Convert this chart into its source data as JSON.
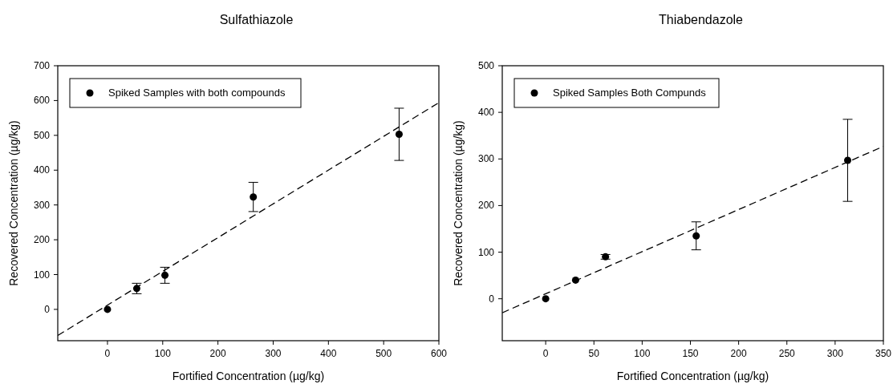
{
  "chart_data": [
    {
      "type": "scatter",
      "title": "Sulfathiazole",
      "xlabel": "Fortified Concentration (µg/kg)",
      "ylabel": "Recovered Concentration (µg/kg)",
      "xlim": [
        -90,
        600
      ],
      "ylim": [
        -90,
        700
      ],
      "xticks": [
        0,
        100,
        200,
        300,
        400,
        500,
        600
      ],
      "yticks": [
        0,
        100,
        200,
        300,
        400,
        500,
        600,
        700
      ],
      "legend": "top left",
      "series": [
        {
          "name": "Spiked Samples with both compounds",
          "marker": "circle",
          "color": "#000000",
          "x": [
            0,
            53,
            104,
            264,
            528
          ],
          "values": [
            0,
            60,
            98,
            323,
            503
          ],
          "errors": [
            null,
            15,
            23,
            42,
            75
          ]
        },
        {
          "type": "line",
          "line_style": "dashed",
          "color": "#000000",
          "x": [
            -90,
            600
          ],
          "values": [
            -75,
            594
          ]
        }
      ]
    },
    {
      "type": "scatter",
      "title": "Thiabendazole",
      "xlabel": "Fortified Concentration (µg/kg)",
      "ylabel": "Recovered Concentration (µg/kg)",
      "xlim": [
        -45,
        350
      ],
      "ylim": [
        -90,
        500
      ],
      "xticks": [
        0,
        50,
        100,
        150,
        200,
        250,
        300,
        350
      ],
      "yticks": [
        0,
        100,
        200,
        300,
        400,
        500
      ],
      "legend": "top left",
      "series": [
        {
          "name": "Spiked Samples Both Compunds",
          "marker": "circle",
          "color": "#000000",
          "x": [
            0,
            31,
            62,
            156,
            313
          ],
          "values": [
            0,
            40,
            90,
            135,
            297
          ],
          "errors": [
            null,
            null,
            5,
            30,
            88
          ]
        },
        {
          "type": "line",
          "line_style": "dashed",
          "color": "#000000",
          "x": [
            -45,
            350
          ],
          "values": [
            -30,
            327
          ]
        }
      ]
    }
  ]
}
